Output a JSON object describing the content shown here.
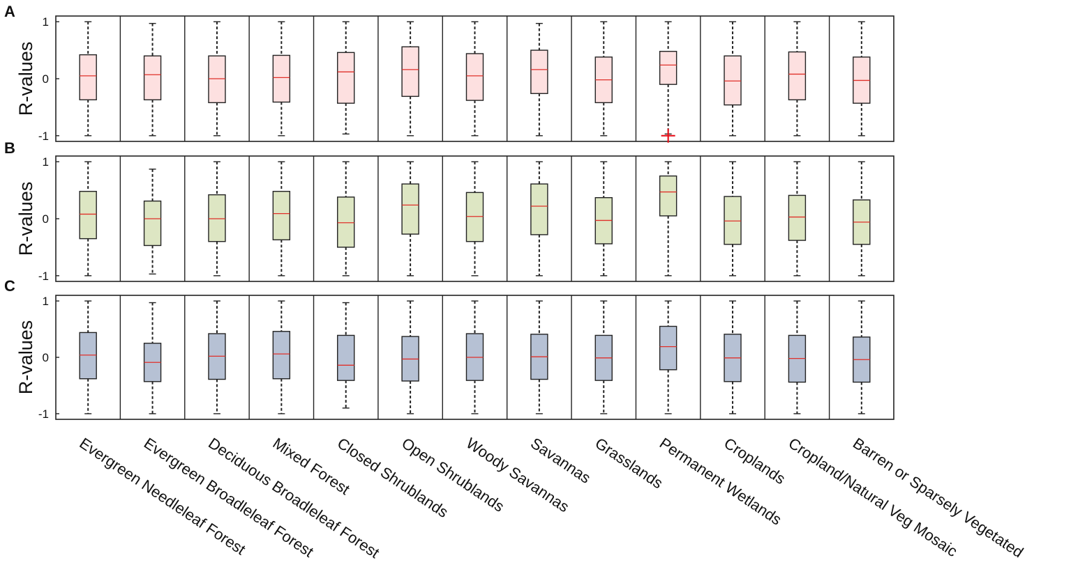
{
  "chart_data": {
    "type": "box",
    "categories": [
      "Evergreen Needleleaf Forest",
      "Evergreen Broadleleaf Forest",
      "Deciduous Broadleleaf Forest",
      "Mixed Forest",
      "Closed Shrublands",
      "Open Shrublands",
      "Woody Savannas",
      "Savannas",
      "Grasslands",
      "Permanent Wetlands",
      "Croplands",
      "Cropland/Natural Veg Mosaic",
      "Barren or Sparsely Vegetated"
    ],
    "ylabel": "R-values",
    "ylim": [
      -1.1,
      1.1
    ],
    "yticks": [
      {
        "value": 1,
        "label": "1"
      },
      {
        "value": 0,
        "label": "0"
      },
      {
        "value": -1,
        "label": "-1"
      }
    ],
    "panels": [
      {
        "label": "A",
        "box_color": "#fde0e0",
        "stats": [
          {
            "min": -1,
            "q1": -0.37,
            "median": 0.05,
            "q3": 0.42,
            "max": 1
          },
          {
            "min": -1,
            "q1": -0.37,
            "median": 0.07,
            "q3": 0.4,
            "max": 0.97
          },
          {
            "min": -1,
            "q1": -0.42,
            "median": 0.0,
            "q3": 0.4,
            "max": 1
          },
          {
            "min": -1,
            "q1": -0.41,
            "median": 0.02,
            "q3": 0.41,
            "max": 1
          },
          {
            "min": -0.97,
            "q1": -0.43,
            "median": 0.12,
            "q3": 0.46,
            "max": 1
          },
          {
            "min": -1,
            "q1": -0.31,
            "median": 0.16,
            "q3": 0.56,
            "max": 1
          },
          {
            "min": -1,
            "q1": -0.38,
            "median": 0.05,
            "q3": 0.44,
            "max": 1
          },
          {
            "min": -1,
            "q1": -0.26,
            "median": 0.16,
            "q3": 0.5,
            "max": 0.97
          },
          {
            "min": -1,
            "q1": -0.42,
            "median": -0.02,
            "q3": 0.38,
            "max": 1
          },
          {
            "min": -0.97,
            "q1": -0.1,
            "median": 0.24,
            "q3": 0.48,
            "max": 1,
            "outliers": [
              -1
            ]
          },
          {
            "min": -1,
            "q1": -0.46,
            "median": -0.04,
            "q3": 0.4,
            "max": 1
          },
          {
            "min": -1,
            "q1": -0.37,
            "median": 0.08,
            "q3": 0.47,
            "max": 1
          },
          {
            "min": -1,
            "q1": -0.43,
            "median": -0.03,
            "q3": 0.38,
            "max": 1
          }
        ]
      },
      {
        "label": "B",
        "box_color": "#dde6c3",
        "stats": [
          {
            "min": -1,
            "q1": -0.35,
            "median": 0.08,
            "q3": 0.48,
            "max": 1
          },
          {
            "min": -0.97,
            "q1": -0.47,
            "median": 0.0,
            "q3": 0.31,
            "max": 0.87
          },
          {
            "min": -1,
            "q1": -0.4,
            "median": 0.0,
            "q3": 0.42,
            "max": 1
          },
          {
            "min": -1,
            "q1": -0.37,
            "median": 0.09,
            "q3": 0.48,
            "max": 1
          },
          {
            "min": -1,
            "q1": -0.5,
            "median": -0.07,
            "q3": 0.38,
            "max": 1
          },
          {
            "min": -1,
            "q1": -0.27,
            "median": 0.24,
            "q3": 0.61,
            "max": 1
          },
          {
            "min": -1,
            "q1": -0.4,
            "median": 0.04,
            "q3": 0.46,
            "max": 1
          },
          {
            "min": -1,
            "q1": -0.28,
            "median": 0.22,
            "q3": 0.61,
            "max": 1
          },
          {
            "min": -1,
            "q1": -0.44,
            "median": -0.03,
            "q3": 0.37,
            "max": 1
          },
          {
            "min": -1,
            "q1": 0.05,
            "median": 0.47,
            "q3": 0.75,
            "max": 1
          },
          {
            "min": -1,
            "q1": -0.45,
            "median": -0.04,
            "q3": 0.39,
            "max": 1
          },
          {
            "min": -1,
            "q1": -0.38,
            "median": 0.03,
            "q3": 0.41,
            "max": 1
          },
          {
            "min": -1,
            "q1": -0.45,
            "median": -0.06,
            "q3": 0.33,
            "max": 1
          }
        ]
      },
      {
        "label": "C",
        "box_color": "#b6c1d4",
        "stats": [
          {
            "min": -1,
            "q1": -0.38,
            "median": 0.04,
            "q3": 0.44,
            "max": 1
          },
          {
            "min": -1,
            "q1": -0.43,
            "median": -0.09,
            "q3": 0.25,
            "max": 0.97
          },
          {
            "min": -1,
            "q1": -0.39,
            "median": 0.02,
            "q3": 0.42,
            "max": 1
          },
          {
            "min": -1,
            "q1": -0.38,
            "median": 0.06,
            "q3": 0.46,
            "max": 1
          },
          {
            "min": -0.9,
            "q1": -0.41,
            "median": -0.14,
            "q3": 0.39,
            "max": 0.97
          },
          {
            "min": -1,
            "q1": -0.42,
            "median": -0.03,
            "q3": 0.37,
            "max": 1
          },
          {
            "min": -1,
            "q1": -0.41,
            "median": 0.0,
            "q3": 0.42,
            "max": 1
          },
          {
            "min": -1,
            "q1": -0.39,
            "median": 0.01,
            "q3": 0.41,
            "max": 1
          },
          {
            "min": -1,
            "q1": -0.41,
            "median": -0.01,
            "q3": 0.39,
            "max": 1
          },
          {
            "min": -1,
            "q1": -0.22,
            "median": 0.19,
            "q3": 0.55,
            "max": 1
          },
          {
            "min": -1,
            "q1": -0.43,
            "median": -0.01,
            "q3": 0.41,
            "max": 1
          },
          {
            "min": -1,
            "q1": -0.44,
            "median": -0.02,
            "q3": 0.39,
            "max": 1
          },
          {
            "min": -1,
            "q1": -0.44,
            "median": -0.04,
            "q3": 0.36,
            "max": 1
          }
        ]
      }
    ]
  }
}
